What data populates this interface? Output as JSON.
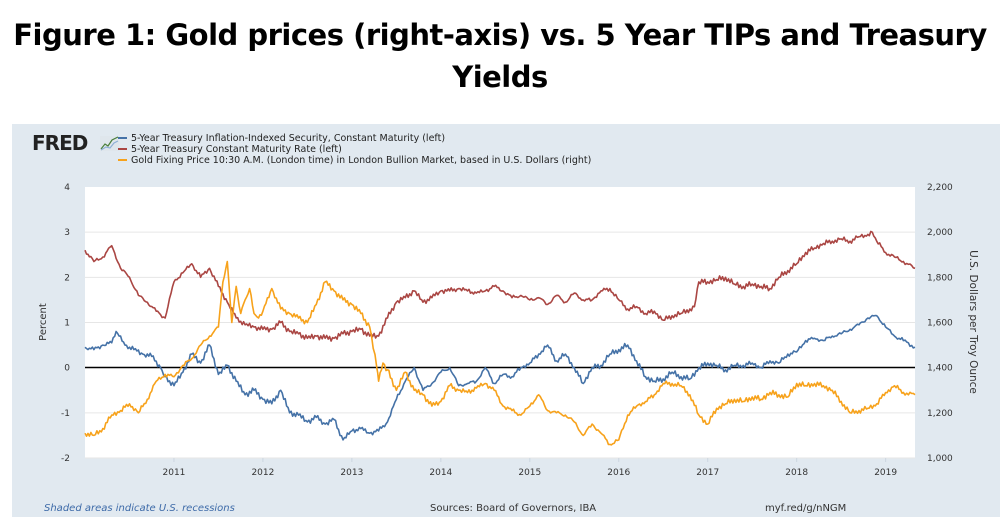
{
  "figure_title_line1": "Figure 1: Gold prices (right-axis) vs. 5 Year TIPs and Treasury",
  "figure_title_line2": "Yields",
  "logo": "FRED",
  "footer": {
    "recession_note": "Shaded areas indicate U.S. recessions",
    "sources": "Sources: Board of Governors, IBA",
    "link": "myf.red/g/nNGM"
  },
  "chart_data": {
    "type": "line",
    "title": "Figure 1: Gold prices (right-axis) vs. 5 Year TIPs and Treasury Yields",
    "xlabel": "",
    "ylabel": "Percent",
    "y2label": "U.S. Dollars per Troy Ounce",
    "xlim": [
      2010.0,
      2019.33
    ],
    "ylim": [
      -2,
      4
    ],
    "y2lim": [
      1000,
      2200
    ],
    "x_ticks": [
      "2011",
      "2012",
      "2013",
      "2014",
      "2015",
      "2016",
      "2017",
      "2018",
      "2019"
    ],
    "y_ticks": [
      "4",
      "3",
      "2",
      "1",
      "0",
      "-1",
      "-2"
    ],
    "y2_ticks": [
      "2,200",
      "2,000",
      "1,800",
      "1,600",
      "1,400",
      "1,200",
      "1,000"
    ],
    "grid": true,
    "legend_position": "top-left",
    "series": [
      {
        "name": "5-Year Treasury Inflation-Indexed Security, Constant Maturity (left)",
        "axis": "left",
        "color": "#4572a7",
        "x": [
          2010.0,
          2010.1,
          2010.2,
          2010.3,
          2010.35,
          2010.45,
          2010.55,
          2010.65,
          2010.75,
          2010.85,
          2010.9,
          2011.0,
          2011.1,
          2011.2,
          2011.3,
          2011.4,
          2011.5,
          2011.6,
          2011.7,
          2011.8,
          2011.9,
          2012.0,
          2012.1,
          2012.2,
          2012.3,
          2012.4,
          2012.5,
          2012.6,
          2012.7,
          2012.8,
          2012.9,
          2013.0,
          2013.1,
          2013.2,
          2013.3,
          2013.4,
          2013.5,
          2013.6,
          2013.7,
          2013.8,
          2013.9,
          2014.0,
          2014.1,
          2014.2,
          2014.3,
          2014.4,
          2014.5,
          2014.6,
          2014.7,
          2014.8,
          2014.9,
          2015.0,
          2015.1,
          2015.2,
          2015.3,
          2015.4,
          2015.5,
          2015.6,
          2015.7,
          2015.8,
          2015.9,
          2016.0,
          2016.1,
          2016.2,
          2016.3,
          2016.4,
          2016.5,
          2016.6,
          2016.7,
          2016.8,
          2016.9,
          2017.0,
          2017.1,
          2017.2,
          2017.3,
          2017.4,
          2017.5,
          2017.6,
          2017.7,
          2017.8,
          2017.9,
          2018.0,
          2018.1,
          2018.2,
          2018.3,
          2018.4,
          2018.5,
          2018.6,
          2018.7,
          2018.8,
          2018.9,
          2019.0,
          2019.1,
          2019.2,
          2019.33
        ],
        "y": [
          0.45,
          0.4,
          0.5,
          0.55,
          0.8,
          0.5,
          0.4,
          0.3,
          0.25,
          0.0,
          -0.2,
          -0.4,
          -0.1,
          0.3,
          0.1,
          0.5,
          -0.15,
          0.05,
          -0.3,
          -0.6,
          -0.5,
          -0.7,
          -0.8,
          -0.5,
          -1.0,
          -1.05,
          -1.2,
          -1.1,
          -1.25,
          -1.15,
          -1.6,
          -1.4,
          -1.35,
          -1.45,
          -1.4,
          -1.2,
          -0.7,
          -0.3,
          0.0,
          -0.5,
          -0.35,
          -0.1,
          0.0,
          -0.4,
          -0.35,
          -0.3,
          0.0,
          -0.35,
          -0.15,
          -0.2,
          0.0,
          0.1,
          0.3,
          0.5,
          0.15,
          0.3,
          0.0,
          -0.35,
          0.0,
          0.05,
          0.3,
          0.4,
          0.5,
          0.15,
          -0.2,
          -0.3,
          -0.25,
          -0.1,
          -0.2,
          -0.25,
          0.0,
          0.1,
          0.05,
          -0.05,
          0.05,
          0.05,
          0.1,
          0.0,
          0.15,
          0.1,
          0.3,
          0.35,
          0.6,
          0.65,
          0.6,
          0.7,
          0.75,
          0.85,
          0.95,
          1.1,
          1.15,
          0.9,
          0.7,
          0.6,
          0.45
        ]
      },
      {
        "name": "5-Year Treasury Constant Maturity Rate (left)",
        "axis": "left",
        "color": "#aa4643",
        "x": [
          2010.0,
          2010.1,
          2010.2,
          2010.3,
          2010.4,
          2010.5,
          2010.6,
          2010.7,
          2010.8,
          2010.9,
          2011.0,
          2011.1,
          2011.2,
          2011.3,
          2011.4,
          2011.5,
          2011.6,
          2011.7,
          2011.8,
          2011.9,
          2012.0,
          2012.1,
          2012.2,
          2012.3,
          2012.4,
          2012.5,
          2012.6,
          2012.7,
          2012.8,
          2012.9,
          2013.0,
          2013.1,
          2013.2,
          2013.3,
          2013.4,
          2013.5,
          2013.6,
          2013.7,
          2013.8,
          2013.9,
          2014.0,
          2014.1,
          2014.2,
          2014.3,
          2014.4,
          2014.5,
          2014.6,
          2014.7,
          2014.8,
          2014.9,
          2015.0,
          2015.1,
          2015.2,
          2015.3,
          2015.4,
          2015.5,
          2015.6,
          2015.7,
          2015.8,
          2015.9,
          2016.0,
          2016.1,
          2016.2,
          2016.3,
          2016.4,
          2016.5,
          2016.6,
          2016.7,
          2016.8,
          2016.85,
          2016.9,
          2017.0,
          2017.1,
          2017.2,
          2017.3,
          2017.4,
          2017.5,
          2017.6,
          2017.7,
          2017.8,
          2017.9,
          2018.0,
          2018.1,
          2018.2,
          2018.3,
          2018.4,
          2018.5,
          2018.6,
          2018.7,
          2018.8,
          2018.85,
          2018.9,
          2019.0,
          2019.1,
          2019.2,
          2019.33
        ],
        "y": [
          2.6,
          2.35,
          2.45,
          2.7,
          2.2,
          2.0,
          1.6,
          1.45,
          1.25,
          1.1,
          1.9,
          2.1,
          2.3,
          2.0,
          2.2,
          1.8,
          1.45,
          1.1,
          0.95,
          0.9,
          0.85,
          0.85,
          1.0,
          0.8,
          0.75,
          0.65,
          0.7,
          0.65,
          0.65,
          0.75,
          0.8,
          0.85,
          0.7,
          0.7,
          1.1,
          1.45,
          1.55,
          1.7,
          1.45,
          1.55,
          1.7,
          1.7,
          1.75,
          1.7,
          1.65,
          1.7,
          1.8,
          1.7,
          1.55,
          1.6,
          1.5,
          1.55,
          1.4,
          1.6,
          1.45,
          1.65,
          1.5,
          1.5,
          1.7,
          1.75,
          1.5,
          1.3,
          1.35,
          1.2,
          1.25,
          1.05,
          1.15,
          1.2,
          1.3,
          1.35,
          1.9,
          1.9,
          1.95,
          2.0,
          1.85,
          1.8,
          1.85,
          1.8,
          1.75,
          2.0,
          2.15,
          2.3,
          2.55,
          2.65,
          2.75,
          2.8,
          2.85,
          2.8,
          2.9,
          2.95,
          3.0,
          2.8,
          2.55,
          2.45,
          2.35,
          2.2
        ]
      },
      {
        "name": "Gold Fixing Price 10:30 A.M. (London time) in London Bullion Market, based in U.S. Dollars (right)",
        "axis": "right",
        "color": "#f7a21b",
        "x": [
          2010.0,
          2010.1,
          2010.2,
          2010.3,
          2010.4,
          2010.5,
          2010.6,
          2010.7,
          2010.8,
          2010.9,
          2011.0,
          2011.1,
          2011.2,
          2011.3,
          2011.4,
          2011.5,
          2011.55,
          2011.6,
          2011.65,
          2011.7,
          2011.75,
          2011.8,
          2011.85,
          2011.9,
          2011.95,
          2012.0,
          2012.1,
          2012.2,
          2012.3,
          2012.4,
          2012.5,
          2012.6,
          2012.7,
          2012.8,
          2012.9,
          2013.0,
          2013.1,
          2013.2,
          2013.28,
          2013.3,
          2013.35,
          2013.4,
          2013.5,
          2013.6,
          2013.7,
          2013.8,
          2013.9,
          2014.0,
          2014.1,
          2014.2,
          2014.3,
          2014.4,
          2014.5,
          2014.6,
          2014.7,
          2014.8,
          2014.9,
          2015.0,
          2015.1,
          2015.2,
          2015.3,
          2015.4,
          2015.5,
          2015.6,
          2015.7,
          2015.8,
          2015.9,
          2016.0,
          2016.1,
          2016.2,
          2016.3,
          2016.4,
          2016.5,
          2016.6,
          2016.7,
          2016.8,
          2016.9,
          2017.0,
          2017.1,
          2017.2,
          2017.3,
          2017.4,
          2017.5,
          2017.6,
          2017.7,
          2017.8,
          2017.9,
          2018.0,
          2018.1,
          2018.2,
          2018.3,
          2018.4,
          2018.5,
          2018.6,
          2018.7,
          2018.8,
          2018.9,
          2019.0,
          2019.1,
          2019.2,
          2019.33
        ],
        "y": [
          1110,
          1100,
          1130,
          1190,
          1210,
          1240,
          1200,
          1260,
          1340,
          1370,
          1360,
          1410,
          1440,
          1500,
          1540,
          1580,
          1780,
          1870,
          1600,
          1760,
          1640,
          1700,
          1750,
          1640,
          1620,
          1650,
          1750,
          1660,
          1640,
          1620,
          1600,
          1680,
          1780,
          1740,
          1700,
          1680,
          1640,
          1580,
          1400,
          1340,
          1420,
          1390,
          1300,
          1380,
          1300,
          1280,
          1230,
          1250,
          1320,
          1300,
          1290,
          1310,
          1330,
          1300,
          1230,
          1210,
          1190,
          1230,
          1280,
          1210,
          1200,
          1190,
          1160,
          1100,
          1150,
          1110,
          1060,
          1080,
          1190,
          1230,
          1250,
          1280,
          1330,
          1330,
          1320,
          1280,
          1190,
          1150,
          1220,
          1240,
          1260,
          1250,
          1270,
          1260,
          1290,
          1280,
          1270,
          1330,
          1320,
          1330,
          1320,
          1300,
          1250,
          1200,
          1210,
          1220,
          1240,
          1290,
          1320,
          1290,
          1280
        ]
      }
    ]
  }
}
